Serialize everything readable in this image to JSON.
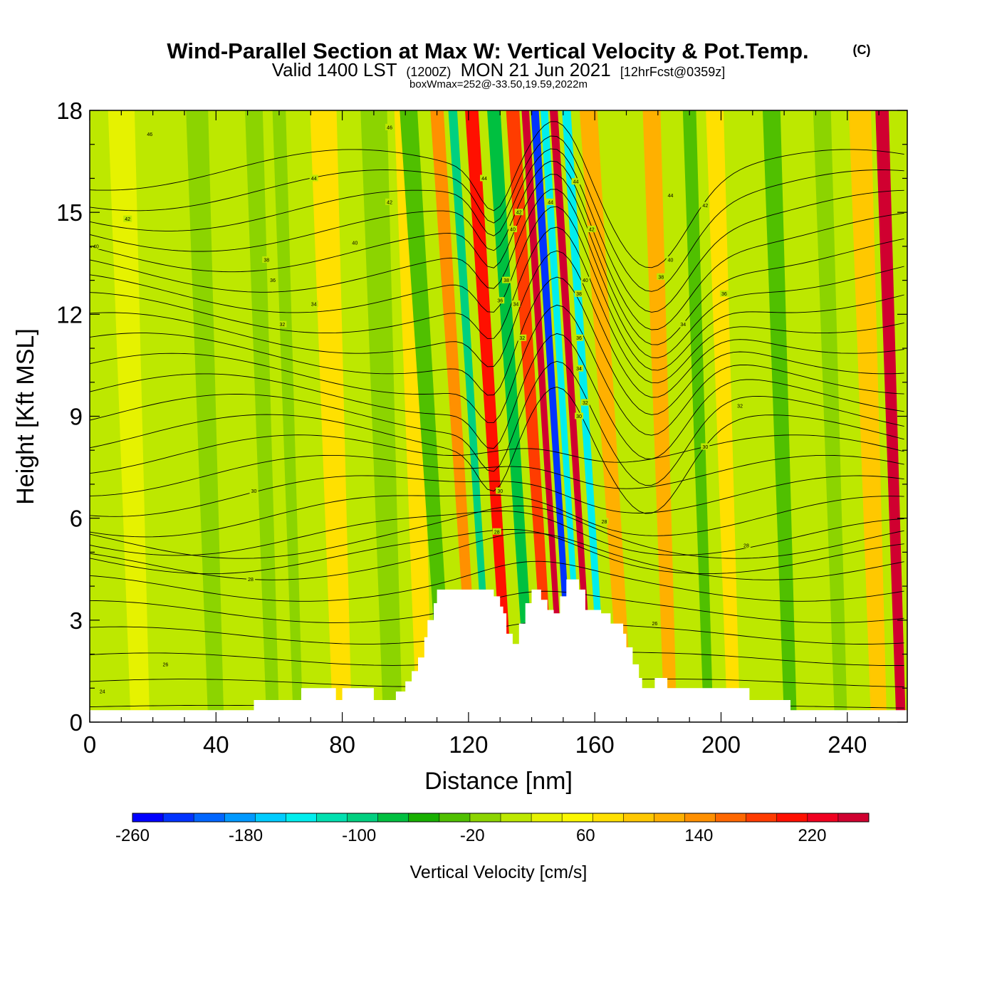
{
  "title": {
    "main": "Wind-Parallel Section at Max W: Vertical Velocity & Pot.Temp.",
    "copyright": "(C)",
    "valid_prefix": "Valid 1400 LST",
    "valid_utc": "(1200Z)",
    "valid_date": "MON 21 Jun 2021",
    "forecast": "[12hrFcst@0359z]",
    "boxwmax": "boxWmax=252@-33.50,19.59,2022m"
  },
  "colors": {
    "background": "#bde800",
    "terrain": "#ffffff",
    "contour": "#000000",
    "palette": [
      "#0000ff",
      "#0033ff",
      "#0066ff",
      "#0099ff",
      "#00ccff",
      "#00eeee",
      "#00e0b0",
      "#00d080",
      "#00c040",
      "#18b000",
      "#50c000",
      "#8cd400",
      "#bde800",
      "#e6f200",
      "#fbf700",
      "#ffe000",
      "#ffc800",
      "#ffb000",
      "#ff9000",
      "#ff6800",
      "#ff3c00",
      "#ff1000",
      "#f00020",
      "#d00030"
    ]
  },
  "chart_data": {
    "type": "contour-cross-section",
    "title": "Wind-Parallel Section at Max W: Vertical Velocity & Pot.Temp.",
    "xlabel": "Distance [nm]",
    "ylabel": "Height [Kft MSL]",
    "xlim": [
      0,
      259
    ],
    "ylim": [
      0,
      18
    ],
    "xticks": [
      0,
      40,
      80,
      120,
      160,
      200,
      240
    ],
    "yticks": [
      0,
      3,
      6,
      9,
      12,
      15,
      18
    ],
    "x_minor_step": 10,
    "y_minor_step": 1,
    "colorbar": {
      "title": "Vertical Velocity [cm/s]",
      "min": -260,
      "max": 260,
      "step": 20,
      "labels": [
        -260,
        -180,
        -100,
        -20,
        60,
        140,
        220
      ]
    },
    "vertical_velocity_bands": [
      {
        "x": 16,
        "w": 6,
        "value": 0
      },
      {
        "x": 40,
        "w": 5,
        "value": -30
      },
      {
        "x": 58,
        "w": 4,
        "value": -30
      },
      {
        "x": 66,
        "w": 3,
        "value": -35
      },
      {
        "x": 80,
        "w": 6,
        "value": 45
      },
      {
        "x": 96,
        "w": 6,
        "value": -40
      },
      {
        "x": 106,
        "w": 5,
        "value": 55
      },
      {
        "x": 113,
        "w": 4,
        "value": -50
      },
      {
        "x": 122,
        "w": 3,
        "value": 100
      },
      {
        "x": 127,
        "w": 2,
        "value": -120
      },
      {
        "x": 133,
        "w": 3,
        "value": 160
      },
      {
        "x": 140,
        "w": 3,
        "value": -90
      },
      {
        "x": 146,
        "w": 3,
        "value": 150
      },
      {
        "x": 150,
        "w": 1.7,
        "value": 220
      },
      {
        "x": 153,
        "w": 1.8,
        "value": -230
      },
      {
        "x": 156,
        "w": 1.7,
        "value": -160
      },
      {
        "x": 159,
        "w": 1.8,
        "value": 210
      },
      {
        "x": 163,
        "w": 2,
        "value": -150
      },
      {
        "x": 170,
        "w": 4,
        "value": 80
      },
      {
        "x": 184,
        "w": 4,
        "value": 90
      },
      {
        "x": 196,
        "w": 3,
        "value": -60
      },
      {
        "x": 204,
        "w": 4,
        "value": 40
      },
      {
        "x": 222,
        "w": 4,
        "value": -60
      },
      {
        "x": 238,
        "w": 4,
        "value": -30
      },
      {
        "x": 250,
        "w": 5,
        "value": 70
      },
      {
        "x": 257,
        "w": 3,
        "value": 200
      }
    ],
    "terrain_profile": [
      [
        0,
        0.35
      ],
      [
        52,
        0.35
      ],
      [
        52,
        0.65
      ],
      [
        67,
        0.65
      ],
      [
        67,
        1.0
      ],
      [
        78,
        1.0
      ],
      [
        78,
        0.65
      ],
      [
        80,
        0.65
      ],
      [
        80,
        1.0
      ],
      [
        90,
        1.0
      ],
      [
        90,
        0.65
      ],
      [
        97,
        0.65
      ],
      [
        97,
        0.9
      ],
      [
        100,
        0.9
      ],
      [
        100,
        1.2
      ],
      [
        102,
        1.2
      ],
      [
        102,
        1.5
      ],
      [
        104,
        1.5
      ],
      [
        104,
        1.9
      ],
      [
        106,
        1.9
      ],
      [
        106,
        2.5
      ],
      [
        107,
        2.5
      ],
      [
        107,
        3.0
      ],
      [
        109,
        3.0
      ],
      [
        109,
        3.5
      ],
      [
        110,
        3.5
      ],
      [
        110,
        3.9
      ],
      [
        128,
        3.9
      ],
      [
        128,
        3.7
      ],
      [
        130,
        3.7
      ],
      [
        130,
        3.4
      ],
      [
        131,
        3.4
      ],
      [
        131,
        3.2
      ],
      [
        132,
        3.2
      ],
      [
        132,
        2.6
      ],
      [
        134,
        2.6
      ],
      [
        134,
        2.3
      ],
      [
        136,
        2.3
      ],
      [
        136,
        2.9
      ],
      [
        138,
        2.9
      ],
      [
        138,
        3.5
      ],
      [
        140,
        3.5
      ],
      [
        140,
        3.9
      ],
      [
        143,
        3.9
      ],
      [
        143,
        3.6
      ],
      [
        145,
        3.6
      ],
      [
        145,
        3.3
      ],
      [
        147,
        3.3
      ],
      [
        147,
        3.2
      ],
      [
        149,
        3.2
      ],
      [
        149,
        3.7
      ],
      [
        151,
        3.7
      ],
      [
        151,
        4.2
      ],
      [
        155,
        4.2
      ],
      [
        155,
        3.9
      ],
      [
        157,
        3.9
      ],
      [
        157,
        3.3
      ],
      [
        162,
        3.3
      ],
      [
        162,
        3.2
      ],
      [
        165,
        3.2
      ],
      [
        165,
        2.9
      ],
      [
        169,
        2.9
      ],
      [
        169,
        2.6
      ],
      [
        170,
        2.6
      ],
      [
        170,
        2.2
      ],
      [
        172,
        2.2
      ],
      [
        172,
        1.7
      ],
      [
        174,
        1.7
      ],
      [
        174,
        1.3
      ],
      [
        175,
        1.3
      ],
      [
        175,
        1.0
      ],
      [
        179,
        1.0
      ],
      [
        179,
        1.3
      ],
      [
        183,
        1.3
      ],
      [
        183,
        1.0
      ],
      [
        209,
        1.0
      ],
      [
        209,
        0.65
      ],
      [
        222,
        0.65
      ],
      [
        222,
        0.35
      ],
      [
        259,
        0.35
      ]
    ],
    "potential_temperature_contour_labels": [
      {
        "x": 19,
        "y": 17.3,
        "label": "46"
      },
      {
        "x": 95,
        "y": 17.5,
        "label": "46"
      },
      {
        "x": 71,
        "y": 16.0,
        "label": "44"
      },
      {
        "x": 125,
        "y": 16.0,
        "label": "44"
      },
      {
        "x": 12,
        "y": 14.8,
        "label": "42"
      },
      {
        "x": 95,
        "y": 15.3,
        "label": "42"
      },
      {
        "x": 2,
        "y": 14.0,
        "label": "40"
      },
      {
        "x": 84,
        "y": 14.1,
        "label": "40"
      },
      {
        "x": 56,
        "y": 13.6,
        "label": "38"
      },
      {
        "x": 58,
        "y": 13.0,
        "label": "36"
      },
      {
        "x": 71,
        "y": 12.3,
        "label": "34"
      },
      {
        "x": 61,
        "y": 11.7,
        "label": "32"
      },
      {
        "x": 136,
        "y": 15.0,
        "label": "42"
      },
      {
        "x": 134,
        "y": 14.5,
        "label": "40"
      },
      {
        "x": 132,
        "y": 13.0,
        "label": "38"
      },
      {
        "x": 130,
        "y": 12.4,
        "label": "36"
      },
      {
        "x": 135,
        "y": 12.3,
        "label": "34"
      },
      {
        "x": 137,
        "y": 11.3,
        "label": "32"
      },
      {
        "x": 146,
        "y": 15.3,
        "label": "44"
      },
      {
        "x": 154,
        "y": 15.9,
        "label": "44"
      },
      {
        "x": 159,
        "y": 14.5,
        "label": "42"
      },
      {
        "x": 157,
        "y": 13.0,
        "label": "40"
      },
      {
        "x": 155,
        "y": 12.6,
        "label": "38"
      },
      {
        "x": 155,
        "y": 11.3,
        "label": "36"
      },
      {
        "x": 155,
        "y": 10.4,
        "label": "34"
      },
      {
        "x": 157,
        "y": 9.4,
        "label": "32"
      },
      {
        "x": 155,
        "y": 9.0,
        "label": "30"
      },
      {
        "x": 163,
        "y": 5.9,
        "label": "28"
      },
      {
        "x": 184,
        "y": 15.5,
        "label": "44"
      },
      {
        "x": 195,
        "y": 15.2,
        "label": "42"
      },
      {
        "x": 184,
        "y": 13.6,
        "label": "40"
      },
      {
        "x": 181,
        "y": 13.1,
        "label": "38"
      },
      {
        "x": 201,
        "y": 12.6,
        "label": "36"
      },
      {
        "x": 188,
        "y": 11.7,
        "label": "34"
      },
      {
        "x": 206,
        "y": 9.3,
        "label": "32"
      },
      {
        "x": 195,
        "y": 8.1,
        "label": "30"
      },
      {
        "x": 208,
        "y": 5.2,
        "label": "28"
      },
      {
        "x": 179,
        "y": 2.9,
        "label": "26"
      },
      {
        "x": 130,
        "y": 6.8,
        "label": "30"
      },
      {
        "x": 129,
        "y": 5.6,
        "label": "28"
      },
      {
        "x": 52,
        "y": 6.8,
        "label": "30"
      },
      {
        "x": 51,
        "y": 4.2,
        "label": "28"
      },
      {
        "x": 24,
        "y": 1.7,
        "label": "26"
      },
      {
        "x": 4,
        "y": 0.9,
        "label": "24"
      }
    ]
  }
}
